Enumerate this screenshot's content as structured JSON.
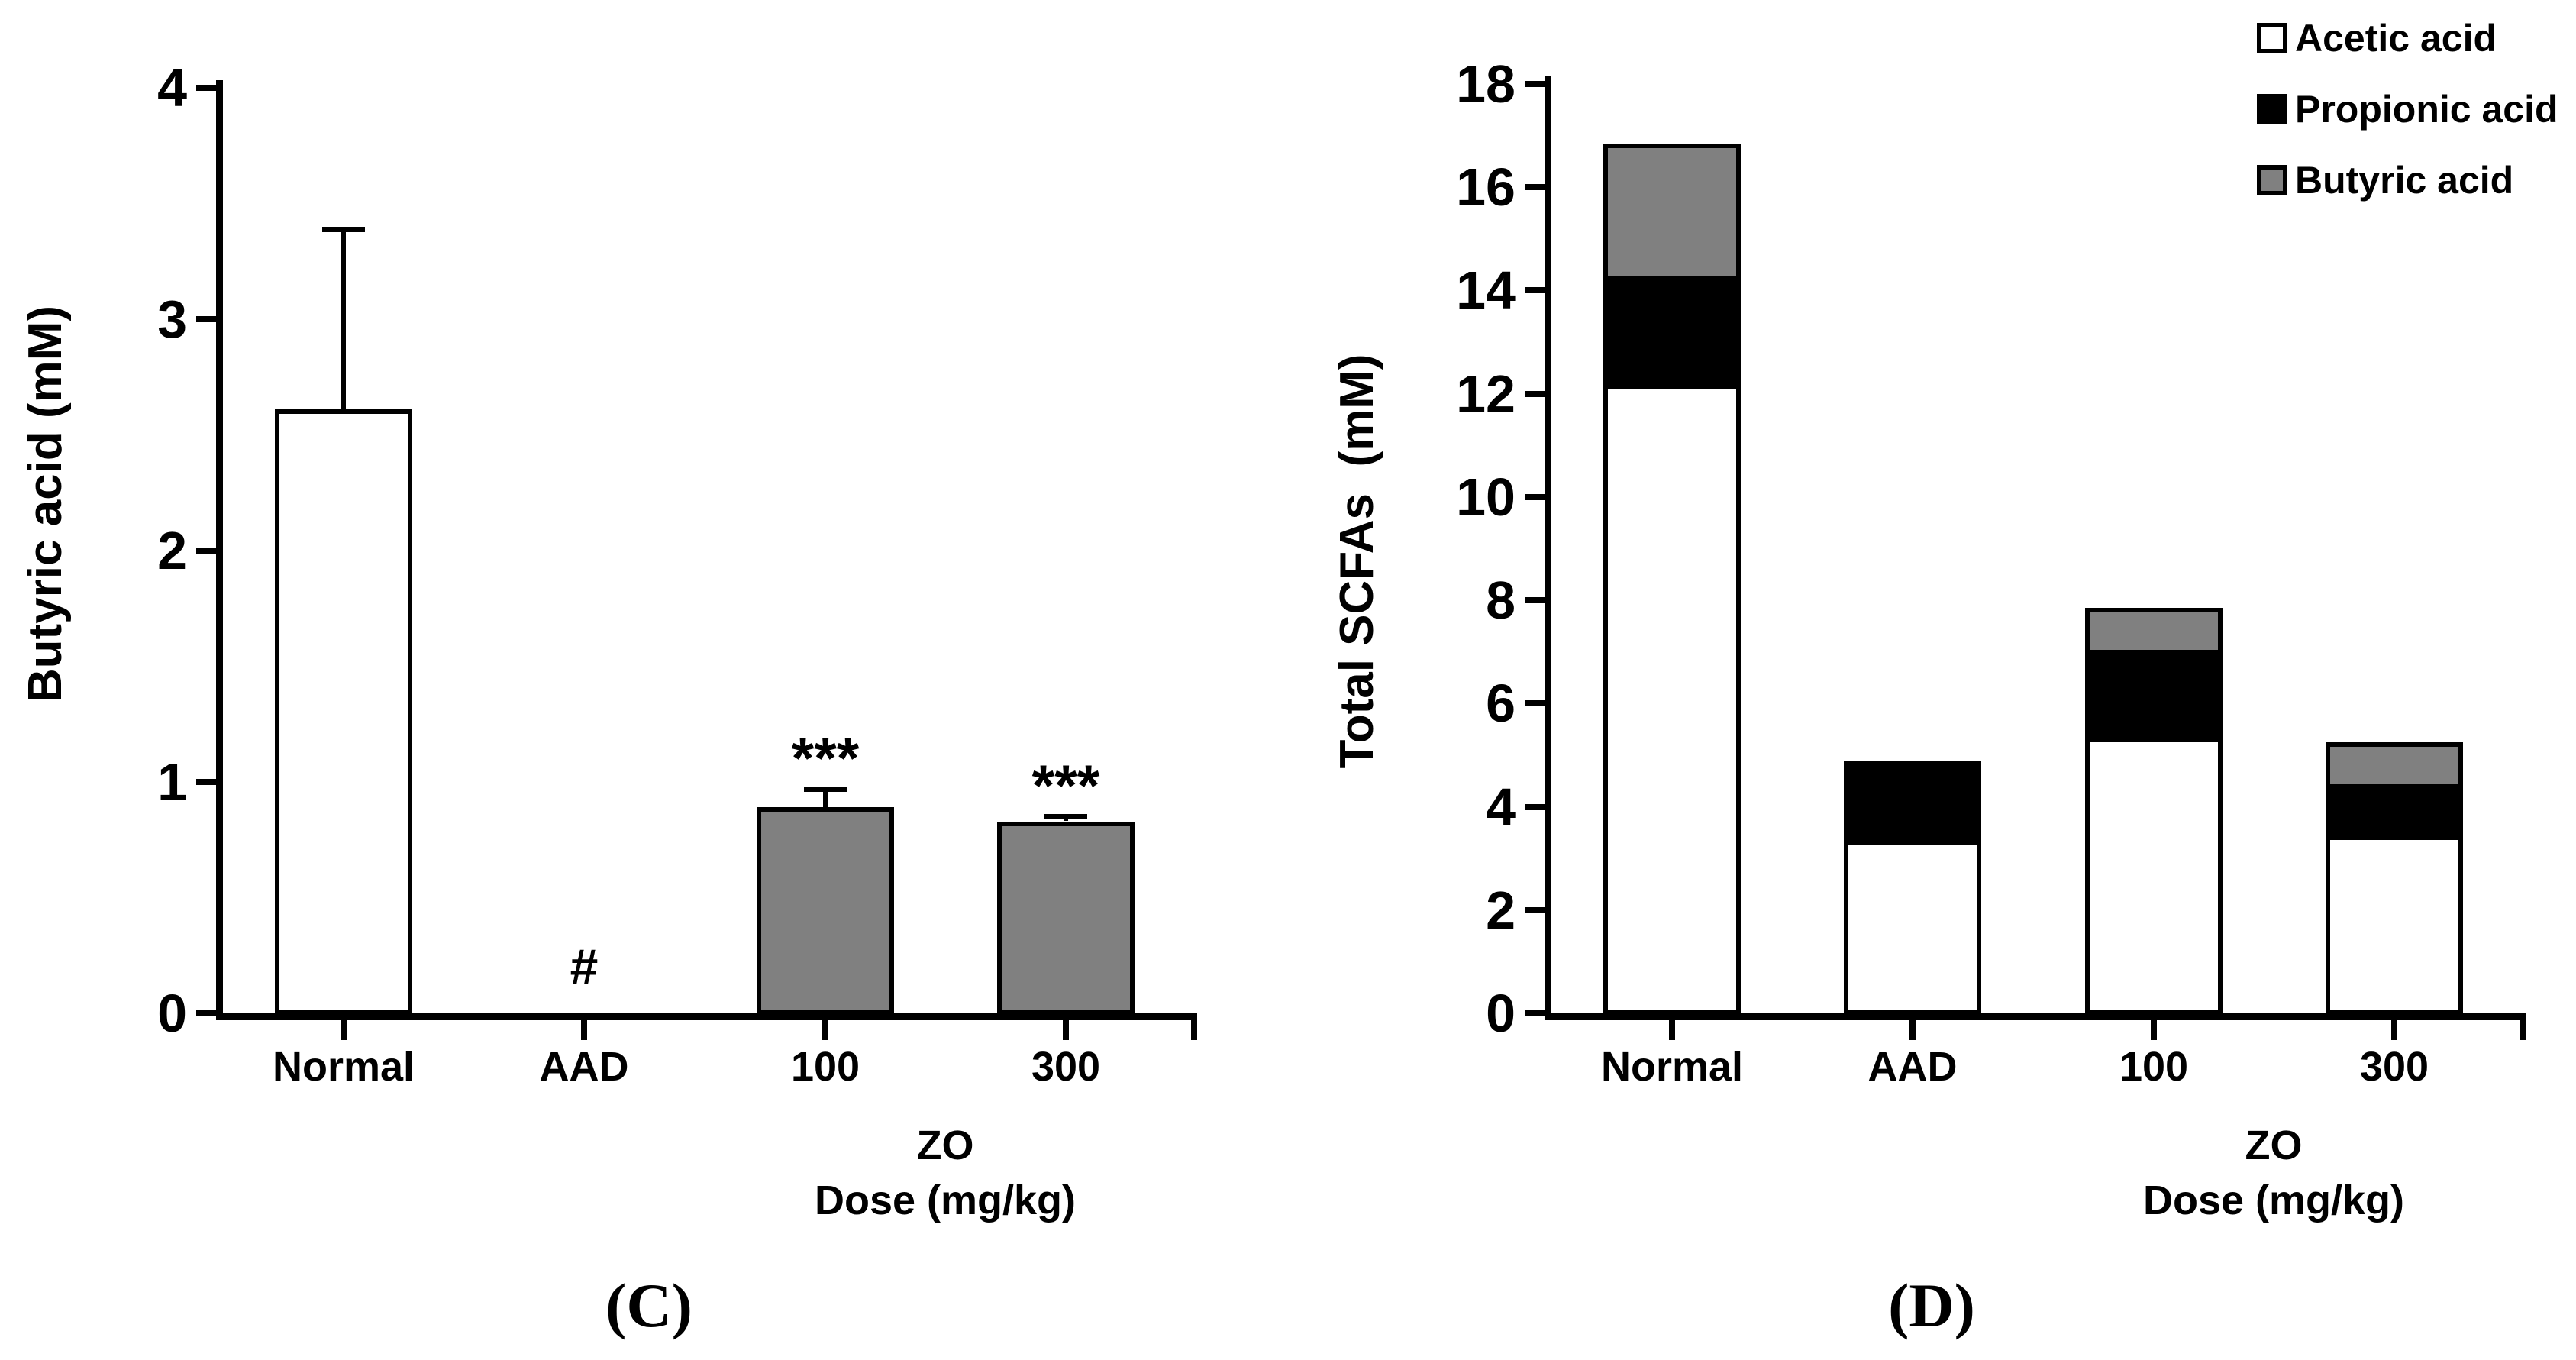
{
  "figure": {
    "panel_c_label": "(C)",
    "panel_d_label": "(D)"
  },
  "chart_data": [
    {
      "type": "bar",
      "panel_label": "(C)",
      "title": "",
      "ylabel": "Butyric acid (mM)",
      "xlabel_line1": "ZO",
      "xlabel_line2": "Dose (mg/kg)",
      "ylim": [
        0,
        4
      ],
      "yticks": [
        0,
        1,
        2,
        3,
        4
      ],
      "grid": false,
      "categories": [
        "Normal",
        "AAD",
        "100",
        "300"
      ],
      "values": [
        2.61,
        0,
        0.89,
        0.83
      ],
      "errors_upper": [
        0.78,
        0,
        0.08,
        0.02
      ],
      "bar_fill_colors": [
        "#ffffff",
        "none",
        "#808080",
        "#808080"
      ],
      "bar_border_color": "#000000",
      "annotations": [
        {
          "category": "AAD",
          "text": "#",
          "y": 0.2
        },
        {
          "category": "100",
          "text": "***",
          "y": 1.1
        },
        {
          "category": "300",
          "text": "***",
          "y": 0.98
        }
      ]
    },
    {
      "type": "stacked-bar",
      "panel_label": "(D)",
      "title": "",
      "ylabel": "Total SCFAs  (mM)",
      "xlabel_line1": "ZO",
      "xlabel_line2": "Dose (mg/kg)",
      "ylim": [
        0,
        18
      ],
      "yticks": [
        0,
        2,
        4,
        6,
        8,
        10,
        12,
        14,
        16,
        18
      ],
      "grid": false,
      "categories": [
        "Normal",
        "AAD",
        "100",
        "300"
      ],
      "series": [
        {
          "name": "Acetic acid",
          "color": "#ffffff",
          "values": [
            12.15,
            3.3,
            5.3,
            3.4
          ]
        },
        {
          "name": "Propionic acid",
          "color": "#000000",
          "values": [
            2.1,
            1.6,
            1.7,
            1.0
          ]
        },
        {
          "name": "Butyric acid",
          "color": "#808080",
          "values": [
            2.6,
            0,
            0.85,
            0.85
          ]
        }
      ],
      "totals": [
        16.85,
        4.9,
        7.85,
        5.25
      ],
      "legend_position": "top-right",
      "bar_border_color": "#000000"
    }
  ]
}
